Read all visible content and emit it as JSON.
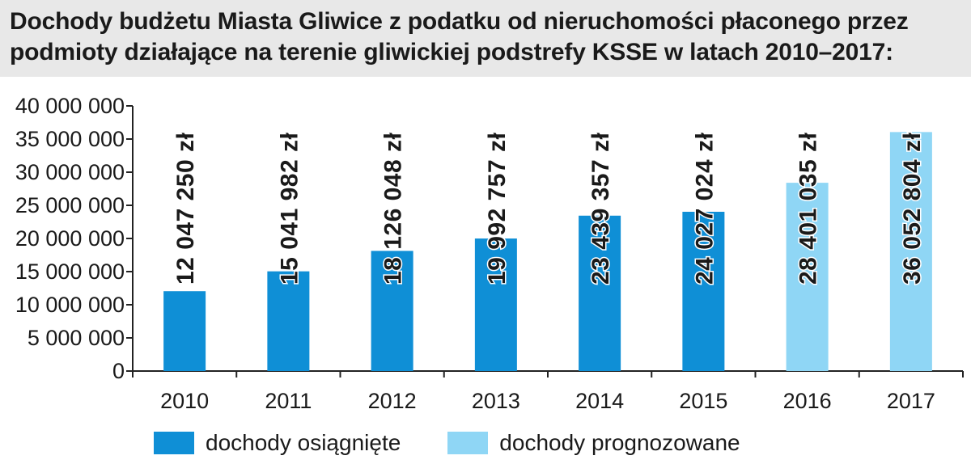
{
  "title": {
    "line1": "Dochody budżetu Miasta Gliwice z podatku od nieruchomości płaconego przez",
    "line2": "podmioty działające na terenie gliwickiej podstrefy KSSE w latach 2010–2017:"
  },
  "chart_data": {
    "type": "bar",
    "categories": [
      "2010",
      "2011",
      "2012",
      "2013",
      "2014",
      "2015",
      "2016",
      "2017"
    ],
    "values": [
      12047250,
      15041982,
      18126048,
      19992757,
      23439357,
      24027024,
      28401035,
      36052804
    ],
    "data_labels": [
      "12 047 250 zł",
      "15 041 982 zł",
      "18 126 048 zł",
      "19 992 757 zł",
      "23 439 357 zł",
      "24 027 024 zł",
      "28 401 035 zł",
      "36 052 804 zł"
    ],
    "series_kind": [
      "osiagniete",
      "osiagniete",
      "osiagniete",
      "osiagniete",
      "osiagniete",
      "osiagniete",
      "prognozowane",
      "prognozowane"
    ],
    "ylim": [
      0,
      40000000
    ],
    "yticks": [
      0,
      5000000,
      10000000,
      15000000,
      20000000,
      25000000,
      30000000,
      35000000,
      40000000
    ],
    "ytick_labels": [
      "0",
      "5 000 000",
      "10 000 000",
      "15 000 000",
      "20 000 000",
      "25 000 000",
      "30 000 000",
      "35 000 000",
      "40 000 000"
    ],
    "xlabel": "",
    "ylabel": "",
    "grid": false,
    "legend_position": "bottom",
    "legend": [
      {
        "key": "osiagniete",
        "label": "dochody osiągnięte",
        "color": "#0f8fd6"
      },
      {
        "key": "prognozowane",
        "label": "dochody prognozowane",
        "color": "#8fd6f5"
      }
    ]
  }
}
